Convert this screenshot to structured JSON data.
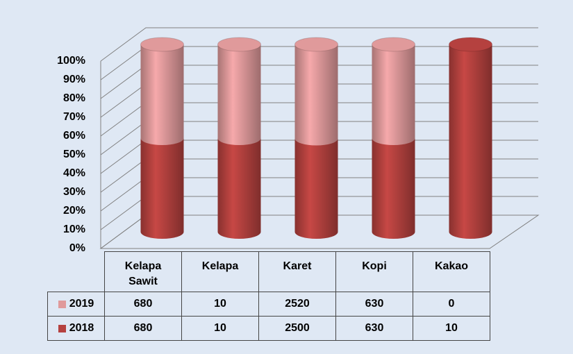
{
  "chart_data": {
    "type": "bar",
    "stacked": "percent",
    "categories": [
      "Kelapa Sawit",
      "Kelapa",
      "Karet",
      "Kopi",
      "Kakao"
    ],
    "series": [
      {
        "name": "2018",
        "color": "#b5413f",
        "values": [
          680,
          10,
          2500,
          630,
          10
        ]
      },
      {
        "name": "2019",
        "color": "#e09a9b",
        "values": [
          680,
          10,
          2520,
          630,
          0
        ]
      }
    ],
    "ylim": [
      0,
      100
    ],
    "yticks": [
      {
        "value": 0,
        "label": "0%"
      },
      {
        "value": 10,
        "label": "10%"
      },
      {
        "value": 20,
        "label": "20%"
      },
      {
        "value": 30,
        "label": "30%"
      },
      {
        "value": 40,
        "label": "40%"
      },
      {
        "value": 50,
        "label": "50%"
      },
      {
        "value": 60,
        "label": "60%"
      },
      {
        "value": 70,
        "label": "70%"
      },
      {
        "value": 80,
        "label": "80%"
      },
      {
        "value": 90,
        "label": "90%"
      },
      {
        "value": 100,
        "label": "100%"
      }
    ],
    "grid": true,
    "legend": "table"
  }
}
